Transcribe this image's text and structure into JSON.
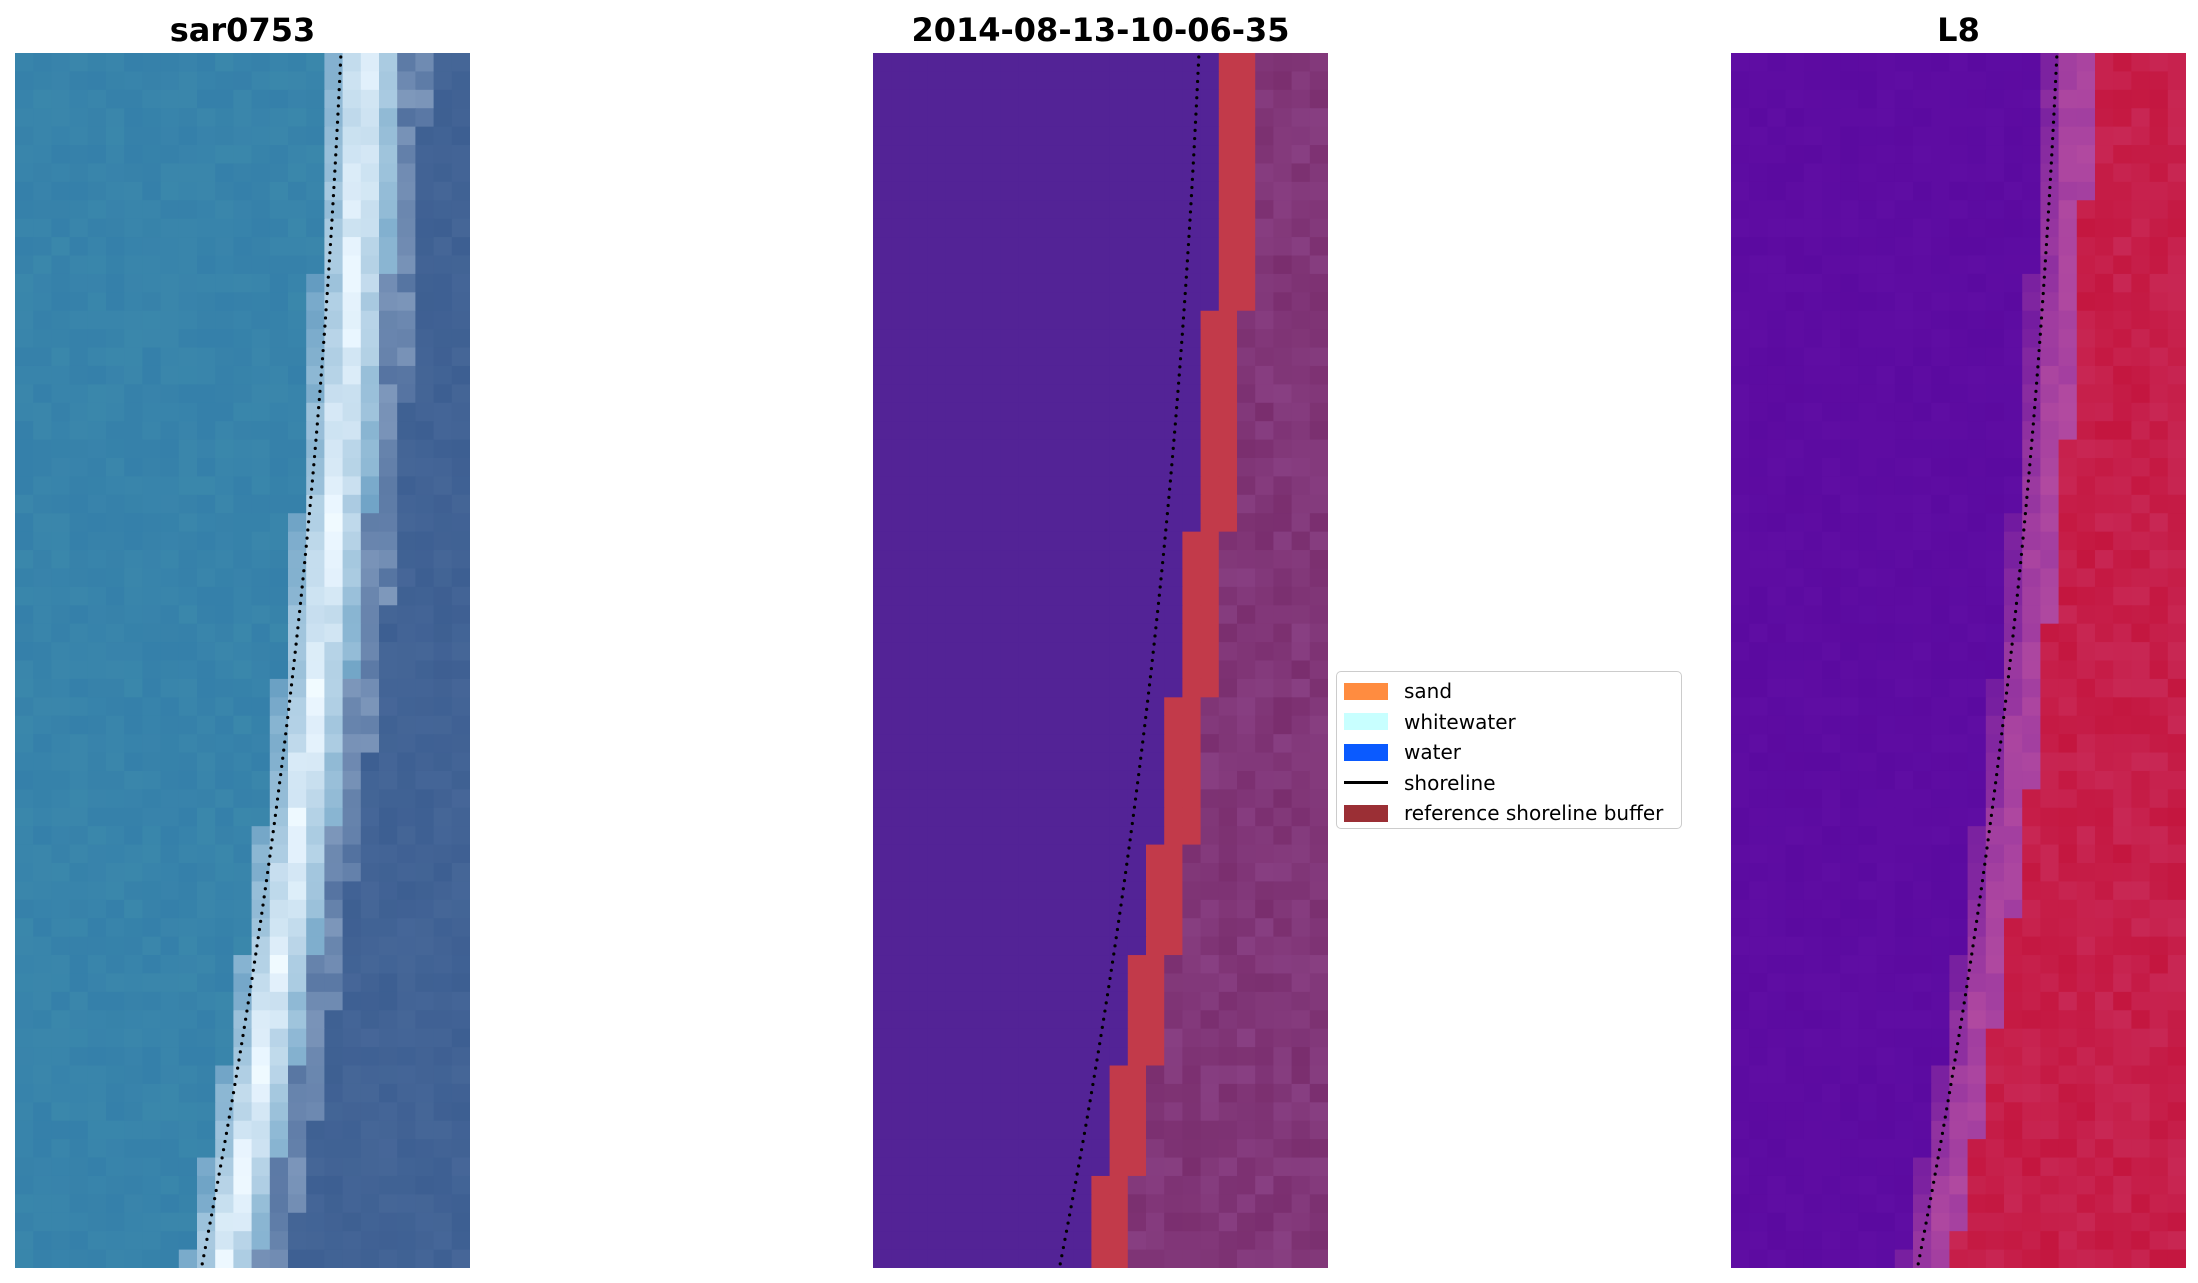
{
  "panels": [
    {
      "title": "sar0753"
    },
    {
      "title": "2014-08-13-10-06-35"
    },
    {
      "title": "L8"
    }
  ],
  "legend": {
    "items": [
      {
        "label": "sand",
        "color": "#ff8c40",
        "kind": "patch"
      },
      {
        "label": "whitewater",
        "color": "#c8ffff",
        "kind": "patch"
      },
      {
        "label": "water",
        "color": "#0a5aff",
        "kind": "patch"
      },
      {
        "label": "shoreline",
        "color": "#000000",
        "kind": "line"
      },
      {
        "label": "reference shoreline buffer",
        "color": "#9b2f35",
        "kind": "patch"
      }
    ]
  },
  "colors": {
    "rgb_water": "#2f78a8",
    "rgb_surf": "#eaf6ff",
    "rgb_land": "#3d5f92",
    "class_water": "#532396",
    "class_buffer": "#c23a4a",
    "class_land": "#7a2e6e",
    "nir_water": "#5b0aa0",
    "nir_surf": "#b24aa0",
    "nir_land": "#c4163f"
  }
}
